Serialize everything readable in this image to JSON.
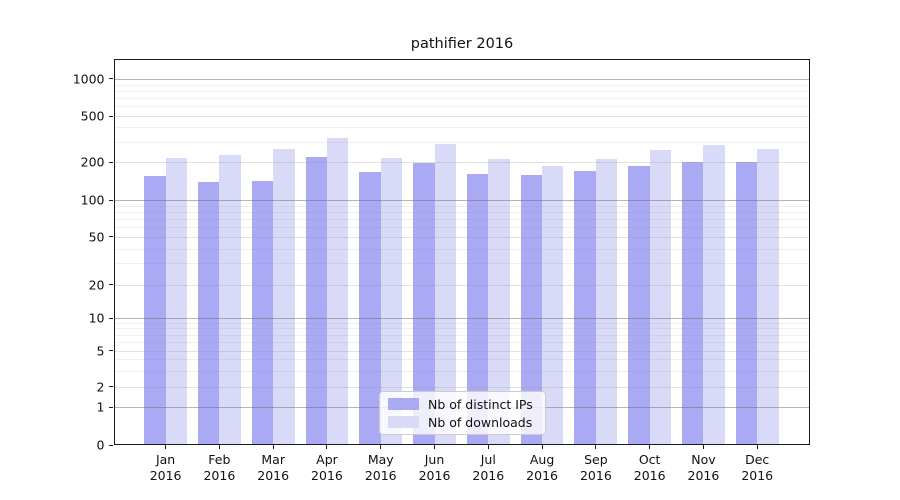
{
  "title": "pathifier 2016",
  "legend": {
    "items": [
      {
        "label": "Nb of distinct IPs",
        "color": "#a9a9f4"
      },
      {
        "label": "Nb of downloads",
        "color": "#d9d9f8"
      }
    ]
  },
  "chart_data": {
    "type": "bar",
    "title": "pathifier 2016",
    "categories": [
      "Jan 2016",
      "Feb 2016",
      "Mar 2016",
      "Apr 2016",
      "May 2016",
      "Jun 2016",
      "Jul 2016",
      "Aug 2016",
      "Sep 2016",
      "Oct 2016",
      "Nov 2016",
      "Dec 2016"
    ],
    "series": [
      {
        "name": "Nb of distinct IPs",
        "color": "#a9a9f4",
        "values": [
          158,
          141,
          146,
          228,
          171,
          201,
          166,
          161,
          175,
          191,
          206,
          206
        ]
      },
      {
        "name": "Nb of downloads",
        "color": "#d9d9f8",
        "values": [
          221,
          238,
          264,
          330,
          225,
          296,
          218,
          191,
          220,
          262,
          286,
          265
        ]
      }
    ],
    "xlabel": "",
    "ylabel": "",
    "yscale": "symlog",
    "yticks": [
      0,
      1,
      2,
      5,
      10,
      20,
      50,
      100,
      200,
      500,
      1000
    ],
    "ylim": [
      0,
      1400
    ],
    "grid": true,
    "legend_position": "lower center"
  },
  "colors": {
    "axis": "#1a1a1a",
    "major_grid": "#b7b7b7",
    "minor_grid": "#e2e2e2",
    "background": "#ffffff"
  }
}
